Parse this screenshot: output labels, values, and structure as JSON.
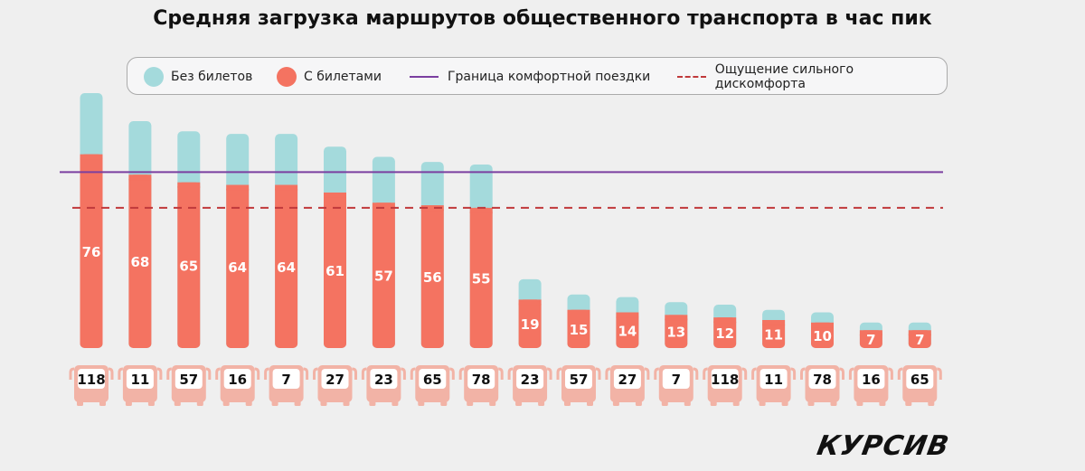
{
  "chart_data": {
    "type": "bar",
    "stacked": true,
    "title": "Средняя загрузка маршрутов общественного транспорта в час пик",
    "categories": [
      "118",
      "11",
      "57",
      "16",
      "7",
      "27",
      "23",
      "65",
      "78",
      "23",
      "57",
      "27",
      "7",
      "118",
      "11",
      "78",
      "16",
      "65"
    ],
    "series": [
      {
        "name": "С билетами",
        "color": "#f47361",
        "values": [
          76,
          68,
          65,
          64,
          64,
          61,
          57,
          56,
          55,
          19,
          15,
          14,
          13,
          12,
          11,
          10,
          7,
          7
        ]
      },
      {
        "name": "Без билетов",
        "color": "#a4dadc",
        "values": [
          24,
          21,
          20,
          20,
          20,
          18,
          18,
          17,
          17,
          8,
          6,
          6,
          5,
          5,
          4,
          4,
          3,
          3
        ]
      }
    ],
    "reference_lines": [
      {
        "name": "Граница комфортной поездки",
        "value": 69,
        "style": "solid",
        "color": "#7b3fa0"
      },
      {
        "name": "Ощущение сильного дискомфорта",
        "value": 55,
        "style": "dashed",
        "color": "#c0393b"
      }
    ],
    "ylim": [
      0,
      100
    ],
    "grid": false,
    "legend_position": "top",
    "category_icon": "bus-icon",
    "category_icon_color": "#f2b3a6"
  },
  "logo": "КУРСИВ"
}
